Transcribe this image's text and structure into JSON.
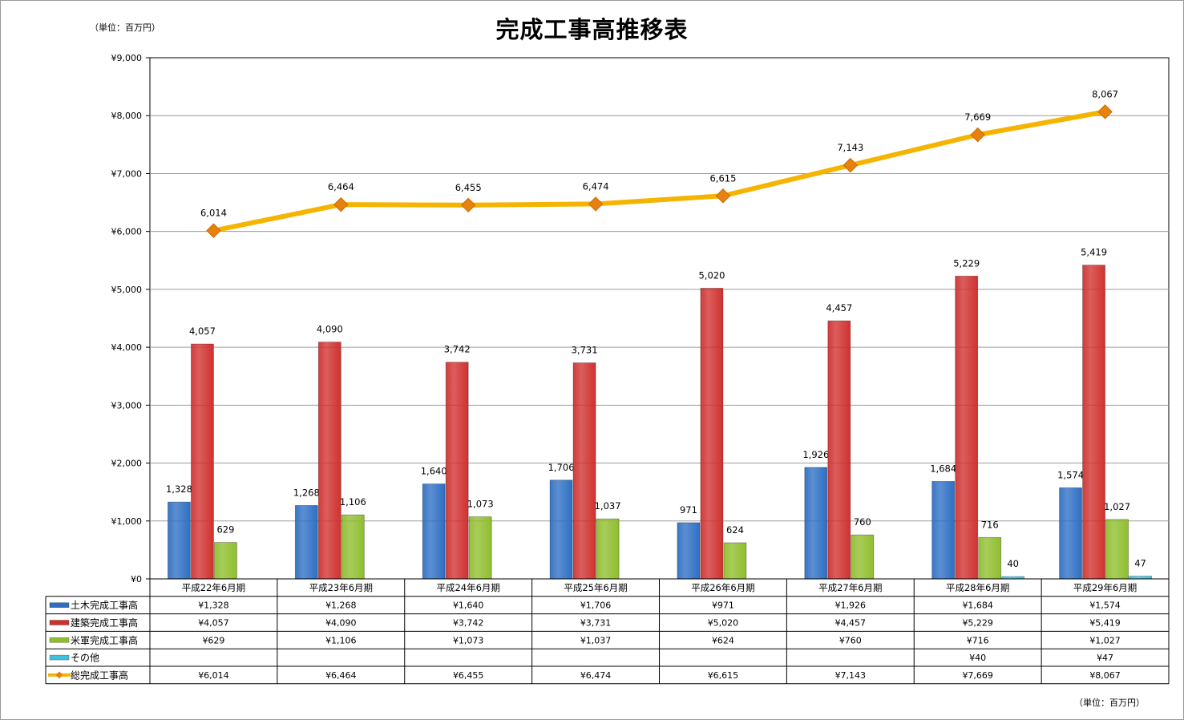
{
  "title": "完成工事高推移表",
  "unit_top": "（単位：百万円）",
  "unit_bottom": "（単位：百万円）",
  "colors": {
    "civil": "#2e6fc4",
    "building": "#d0312f",
    "usmil": "#8fbe2d",
    "other": "#3cc2e0",
    "total_line": "#f4b400",
    "total_marker": "#e9810f",
    "grid": "#9c9c9c"
  },
  "chart_data": {
    "type": "bar",
    "title": "完成工事高推移表",
    "categories": [
      "平成22年6月期",
      "平成23年6月期",
      "平成24年6月期",
      "平成25年6月期",
      "平成26年6月期",
      "平成27年6月期",
      "平成28年6月期",
      "平成29年6月期"
    ],
    "ylim": [
      0,
      9000
    ],
    "yticks": [
      0,
      1000,
      2000,
      3000,
      4000,
      5000,
      6000,
      7000,
      8000,
      9000
    ],
    "ytick_labels": [
      "¥0",
      "¥1,000",
      "¥2,000",
      "¥3,000",
      "¥4,000",
      "¥5,000",
      "¥6,000",
      "¥7,000",
      "¥8,000",
      "¥9,000"
    ],
    "grid": true,
    "series": [
      {
        "key": "civil",
        "name": "土木完成工事高",
        "kind": "bar",
        "values": [
          1328,
          1268,
          1640,
          1706,
          971,
          1926,
          1684,
          1574
        ],
        "labels": [
          "1,328",
          "1,268",
          "1,640",
          "1,706",
          "971",
          "1,926",
          "1,684",
          "1,574"
        ],
        "table": [
          "¥1,328",
          "¥1,268",
          "¥1,640",
          "¥1,706",
          "¥971",
          "¥1,926",
          "¥1,684",
          "¥1,574"
        ]
      },
      {
        "key": "building",
        "name": "建築完成工事高",
        "kind": "bar",
        "values": [
          4057,
          4090,
          3742,
          3731,
          5020,
          4457,
          5229,
          5419
        ],
        "labels": [
          "4,057",
          "4,090",
          "3,742",
          "3,731",
          "5,020",
          "4,457",
          "5,229",
          "5,419"
        ],
        "table": [
          "¥4,057",
          "¥4,090",
          "¥3,742",
          "¥3,731",
          "¥5,020",
          "¥4,457",
          "¥5,229",
          "¥5,419"
        ]
      },
      {
        "key": "usmil",
        "name": "米軍完成工事高",
        "kind": "bar",
        "values": [
          629,
          1106,
          1073,
          1037,
          624,
          760,
          716,
          1027
        ],
        "labels": [
          "629",
          "1,106",
          "1,073",
          "1,037",
          "624",
          "760",
          "716",
          "1,027"
        ],
        "table": [
          "¥629",
          "¥1,106",
          "¥1,073",
          "¥1,037",
          "¥624",
          "¥760",
          "¥716",
          "¥1,027"
        ]
      },
      {
        "key": "other",
        "name": "その他",
        "kind": "bar",
        "values": [
          null,
          null,
          null,
          null,
          null,
          null,
          40,
          47
        ],
        "labels": [
          "",
          "",
          "",
          "",
          "",
          "",
          "40",
          "47"
        ],
        "table": [
          "",
          "",
          "",
          "",
          "",
          "",
          "¥40",
          "¥47"
        ]
      },
      {
        "key": "total",
        "name": "総完成工事高",
        "kind": "line",
        "values": [
          6014,
          6464,
          6455,
          6474,
          6615,
          7143,
          7669,
          8067
        ],
        "labels": [
          "6,014",
          "6,464",
          "6,455",
          "6,474",
          "6,615",
          "7,143",
          "7,669",
          "8,067"
        ],
        "table": [
          "¥6,014",
          "¥6,464",
          "¥6,455",
          "¥6,474",
          "¥6,615",
          "¥7,143",
          "¥7,669",
          "¥8,067"
        ]
      }
    ],
    "legend": "data-table-rows"
  }
}
